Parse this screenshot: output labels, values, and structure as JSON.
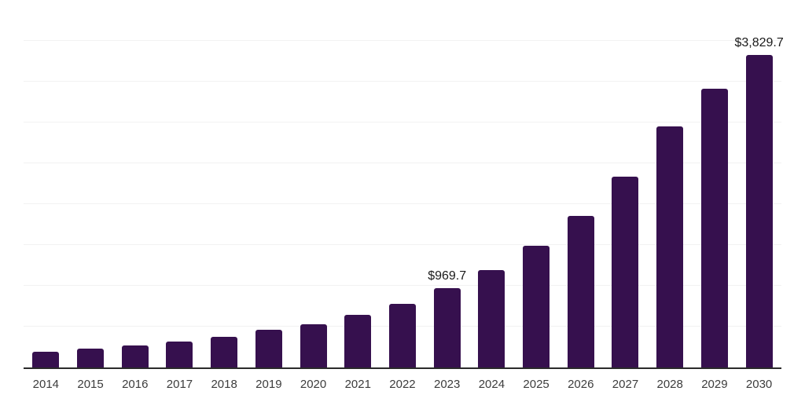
{
  "chart_data": {
    "type": "bar",
    "title": "",
    "xlabel": "",
    "ylabel": "",
    "categories": [
      "2014",
      "2015",
      "2016",
      "2017",
      "2018",
      "2019",
      "2020",
      "2021",
      "2022",
      "2023",
      "2024",
      "2025",
      "2026",
      "2027",
      "2028",
      "2029",
      "2030"
    ],
    "values": [
      191,
      230,
      271,
      313,
      376,
      459,
      529,
      644,
      782,
      969.7,
      1193,
      1490,
      1856,
      2338,
      2950,
      3410,
      3829.7
    ],
    "data_labels": [
      {
        "category": "2023",
        "text": "$969.7"
      },
      {
        "category": "2030",
        "text": "$3,829.7"
      }
    ],
    "ylim": [
      0,
      4500
    ],
    "gridline_step": 500,
    "grid": "horizontal",
    "y_tick_labels_visible": false,
    "legend": "none",
    "colors": {
      "bar": "#36104e",
      "axis": "#2b2b2b",
      "gridline": "#f2f2f2",
      "data_label": "#1a1a1a",
      "tick_label": "#3c3c3c",
      "background": "#ffffff"
    }
  }
}
